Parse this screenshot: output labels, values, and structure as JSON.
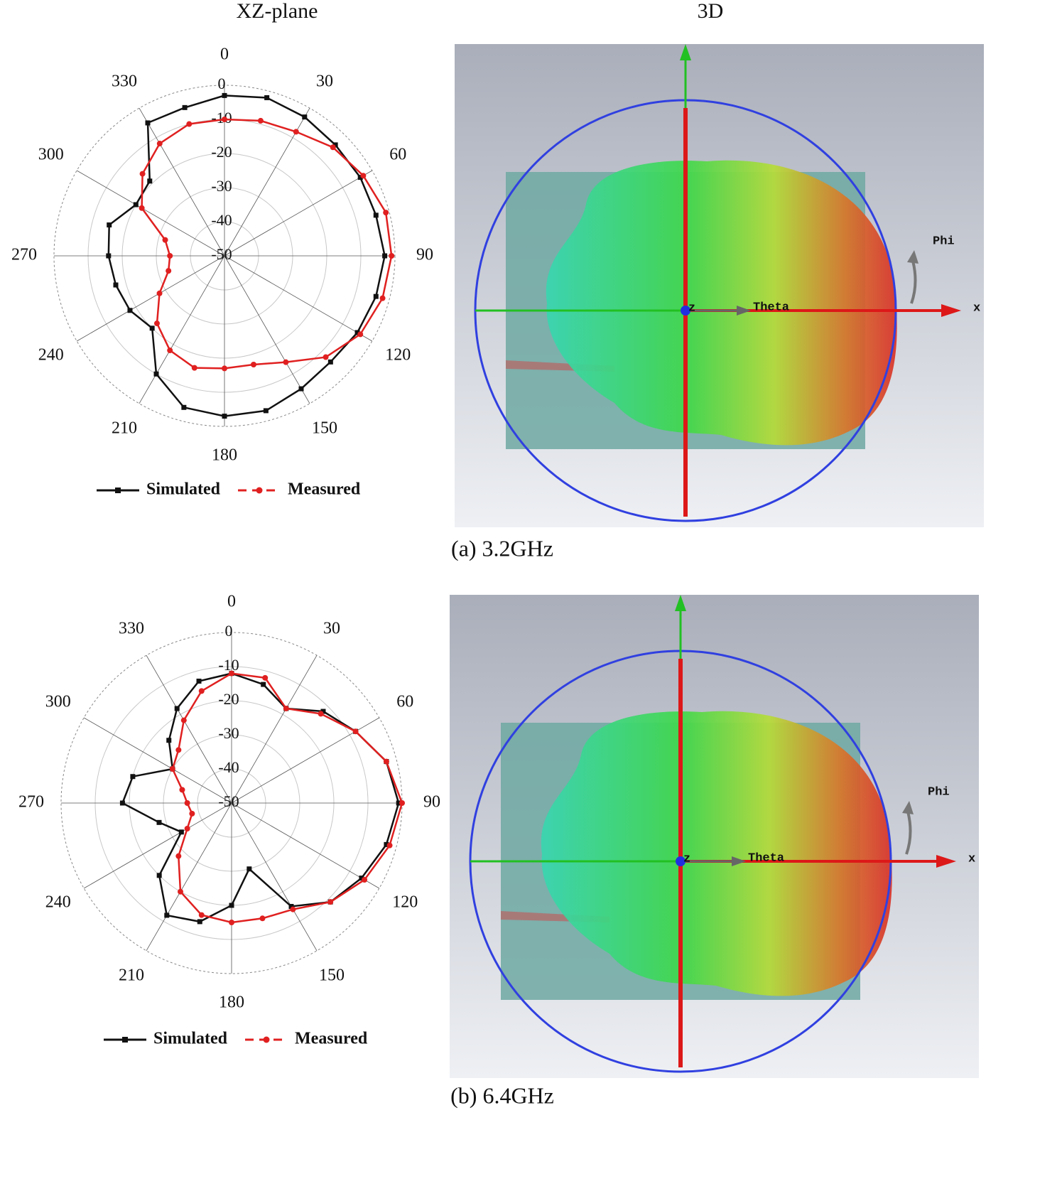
{
  "column_titles": [
    "XZ-plane",
    "3D"
  ],
  "chart_data": [
    {
      "type": "polar",
      "caption": "(a) 3.2GHz",
      "theta": [
        0,
        15,
        30,
        45,
        60,
        75,
        90,
        105,
        120,
        135,
        150,
        165,
        180,
        195,
        210,
        225,
        240,
        255,
        270,
        285,
        300,
        315,
        330,
        345
      ],
      "rlim": [
        -50,
        0
      ],
      "rticks": [
        0,
        -10,
        -20,
        -30,
        -40,
        -50
      ],
      "angle_ticks": [
        0,
        30,
        60,
        90,
        120,
        150,
        180,
        210,
        240,
        270,
        300,
        330
      ],
      "series": [
        {
          "name": "Simulated",
          "color": "#111111",
          "marker": "square",
          "values": [
            -3,
            -2,
            -3,
            -4,
            -4,
            -4,
            -3,
            -4,
            -5,
            -6,
            -5,
            -3,
            -3,
            -4,
            -10,
            -20,
            -18,
            -17,
            -16,
            -15,
            -20,
            -19,
            -5,
            -5
          ]
        },
        {
          "name": "Measured",
          "color": "#e02020",
          "marker": "circle",
          "values": [
            -10,
            -9,
            -8,
            -5,
            -3,
            -1,
            -1,
            -2,
            -4,
            -8,
            -14,
            -17,
            -17,
            -16,
            -18,
            -22,
            -28,
            -33,
            -34,
            -32,
            -22,
            -16,
            -12,
            -10
          ]
        }
      ]
    },
    {
      "type": "polar",
      "caption": "(b) 6.4GHz",
      "theta": [
        0,
        15,
        30,
        45,
        60,
        75,
        90,
        105,
        120,
        135,
        150,
        165,
        180,
        195,
        210,
        225,
        240,
        255,
        270,
        285,
        300,
        315,
        330,
        345
      ],
      "rlim": [
        -50,
        0
      ],
      "rticks": [
        0,
        -10,
        -20,
        -30,
        -40,
        -50
      ],
      "angle_ticks": [
        0,
        30,
        60,
        90,
        120,
        150,
        180,
        210,
        240,
        270,
        300,
        330
      ],
      "series": [
        {
          "name": "Simulated",
          "color": "#111111",
          "marker": "square",
          "values": [
            -12,
            -14,
            -18,
            -12,
            -8,
            -3,
            -1,
            -3,
            -6,
            -9,
            -15,
            -30,
            -20,
            -14,
            -12,
            -20,
            -33,
            -28,
            -18,
            -20,
            -30,
            -24,
            -18,
            -13
          ]
        },
        {
          "name": "Measured",
          "color": "#e02020",
          "marker": "circle",
          "values": [
            -12,
            -12,
            -18,
            -13,
            -8,
            -3,
            0,
            -2,
            -5,
            -9,
            -14,
            -15,
            -15,
            -16,
            -20,
            -28,
            -35,
            -38,
            -37,
            -35,
            -30,
            -28,
            -22,
            -16
          ]
        }
      ]
    }
  ],
  "renders": [
    {
      "labels": {
        "theta": "Theta",
        "phi": "Phi",
        "x": "x",
        "z": "z"
      }
    },
    {
      "labels": {
        "theta": "Theta",
        "phi": "Phi",
        "x": "x",
        "z": "z"
      }
    }
  ]
}
